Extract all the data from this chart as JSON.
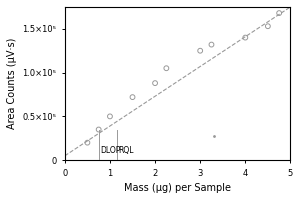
{
  "title": "",
  "xlabel": "Mass (μg) per Sample",
  "ylabel": "Area Counts (μV·s)",
  "xlim": [
    0,
    5
  ],
  "ylim": [
    0,
    175000
  ],
  "scatter_x": [
    0.5,
    0.75,
    1.0,
    1.5,
    2.0,
    2.25,
    3.0,
    3.25,
    4.0,
    4.5,
    4.75
  ],
  "scatter_y": [
    20000,
    35000,
    50000,
    72000,
    88000,
    105000,
    125000,
    132000,
    140000,
    153000,
    168000
  ],
  "fit_x": [
    0.0,
    5.0
  ],
  "fit_y": [
    5000,
    175000
  ],
  "dlop_x": 0.75,
  "rql_x": 1.15,
  "dlop_label": "DLOP",
  "rql_label": "RQL",
  "line_color": "#999999",
  "scatter_color": "#999999",
  "vline_color": "#999999",
  "background_color": "#ffffff",
  "dot_x": 3.3,
  "dot_y": 28000,
  "yticks": [
    0,
    50000,
    100000,
    150000
  ],
  "ytick_labels": [
    "0",
    "0.5×10⁵",
    "1.0×10⁵",
    "1.5×10⁵"
  ],
  "xticks": [
    0,
    1,
    2,
    3,
    4,
    5
  ]
}
